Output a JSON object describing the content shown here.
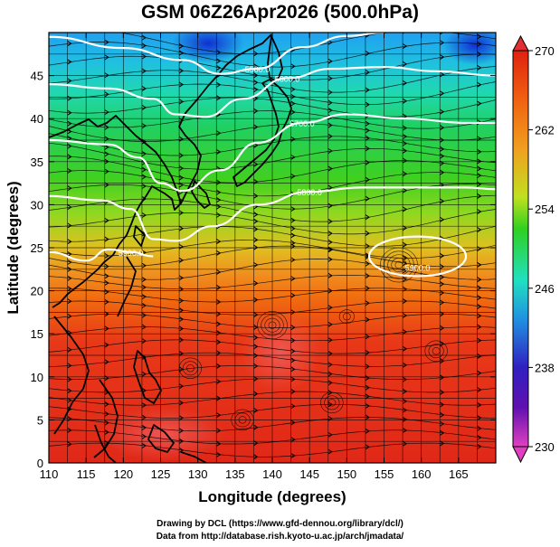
{
  "figure": {
    "title": "GSM 06Z26Apr2026 (500.0hPa)",
    "credit_line1": "Drawing by DCL (https://www.gfd-dennou.org/library/dcl/)",
    "credit_line2": "Data from http://database.rish.kyoto-u.ac.jp/arch/jmadata/"
  },
  "map": {
    "region": "Western North Pacific / East Asia",
    "projection": "equirectangular",
    "field": "temperature (K) at 500.0hPa, shaded, with streamlines",
    "x_axis": {
      "label": "Longitude (degrees)",
      "range": [
        110,
        170
      ],
      "ticks": [
        110,
        115,
        120,
        125,
        130,
        135,
        140,
        145,
        150,
        155,
        160,
        165
      ]
    },
    "y_axis": {
      "label": "Latitude (degrees)",
      "range": [
        0,
        50
      ],
      "ticks": [
        0,
        5,
        10,
        15,
        20,
        25,
        30,
        35,
        40,
        45
      ]
    },
    "colorbar": {
      "ticks": [
        270,
        262,
        254,
        246,
        238,
        230
      ],
      "range": [
        230,
        270
      ],
      "colors": [
        "#e040c0",
        "#3020c0",
        "#2090e0",
        "#20e0c0",
        "#30d020",
        "#c0e020",
        "#f0a020",
        "#f06010",
        "#e02010"
      ]
    },
    "contours": [
      {
        "label": "5500.0",
        "lat_profile": [
          [
            110,
            49.5
          ],
          [
            120,
            48.2
          ],
          [
            128,
            46.8
          ],
          [
            133,
            45.2
          ],
          [
            138,
            45.8
          ],
          [
            144,
            48.3
          ],
          [
            150,
            49.6
          ],
          [
            155,
            50.0
          ]
        ]
      },
      {
        "label": "5600.0",
        "lat_profile": [
          [
            110,
            44.0
          ],
          [
            118,
            43.5
          ],
          [
            124,
            42.3
          ],
          [
            127,
            40.5
          ],
          [
            131,
            40.2
          ],
          [
            136,
            42.3
          ],
          [
            142,
            44.7
          ],
          [
            148,
            45.8
          ],
          [
            155,
            46.0
          ],
          [
            162,
            45.5
          ],
          [
            170,
            45.0
          ]
        ]
      },
      {
        "label": "5700.0",
        "lat_profile": [
          [
            110,
            37.5
          ],
          [
            118,
            37.0
          ],
          [
            122,
            35.5
          ],
          [
            125,
            32.5
          ],
          [
            128,
            31.6
          ],
          [
            133,
            34.0
          ],
          [
            138,
            37.2
          ],
          [
            144,
            39.5
          ],
          [
            150,
            40.5
          ],
          [
            158,
            40.0
          ],
          [
            166,
            39.5
          ],
          [
            170,
            39.5
          ]
        ]
      },
      {
        "label": "5800.0",
        "lat_profile": [
          [
            110,
            31.0
          ],
          [
            117,
            30.5
          ],
          [
            121,
            29.5
          ],
          [
            124,
            26.0
          ],
          [
            127,
            25.8
          ],
          [
            132,
            27.5
          ],
          [
            138,
            30.0
          ],
          [
            145,
            31.5
          ],
          [
            152,
            32.0
          ],
          [
            160,
            32.0
          ],
          [
            166,
            32.0
          ],
          [
            170,
            31.8
          ]
        ]
      },
      {
        "label": "5900.0",
        "lat_profile": [
          [
            110,
            24.5
          ],
          [
            115,
            23.5
          ],
          [
            118,
            24.8
          ],
          [
            121,
            24.5
          ],
          [
            124,
            24.0
          ]
        ]
      }
    ],
    "closed_contour": {
      "label": "5900.0",
      "center": [
        159.5,
        24.0
      ],
      "radius": [
        6.5,
        2.3
      ]
    },
    "contour_color": "#ffffff"
  }
}
